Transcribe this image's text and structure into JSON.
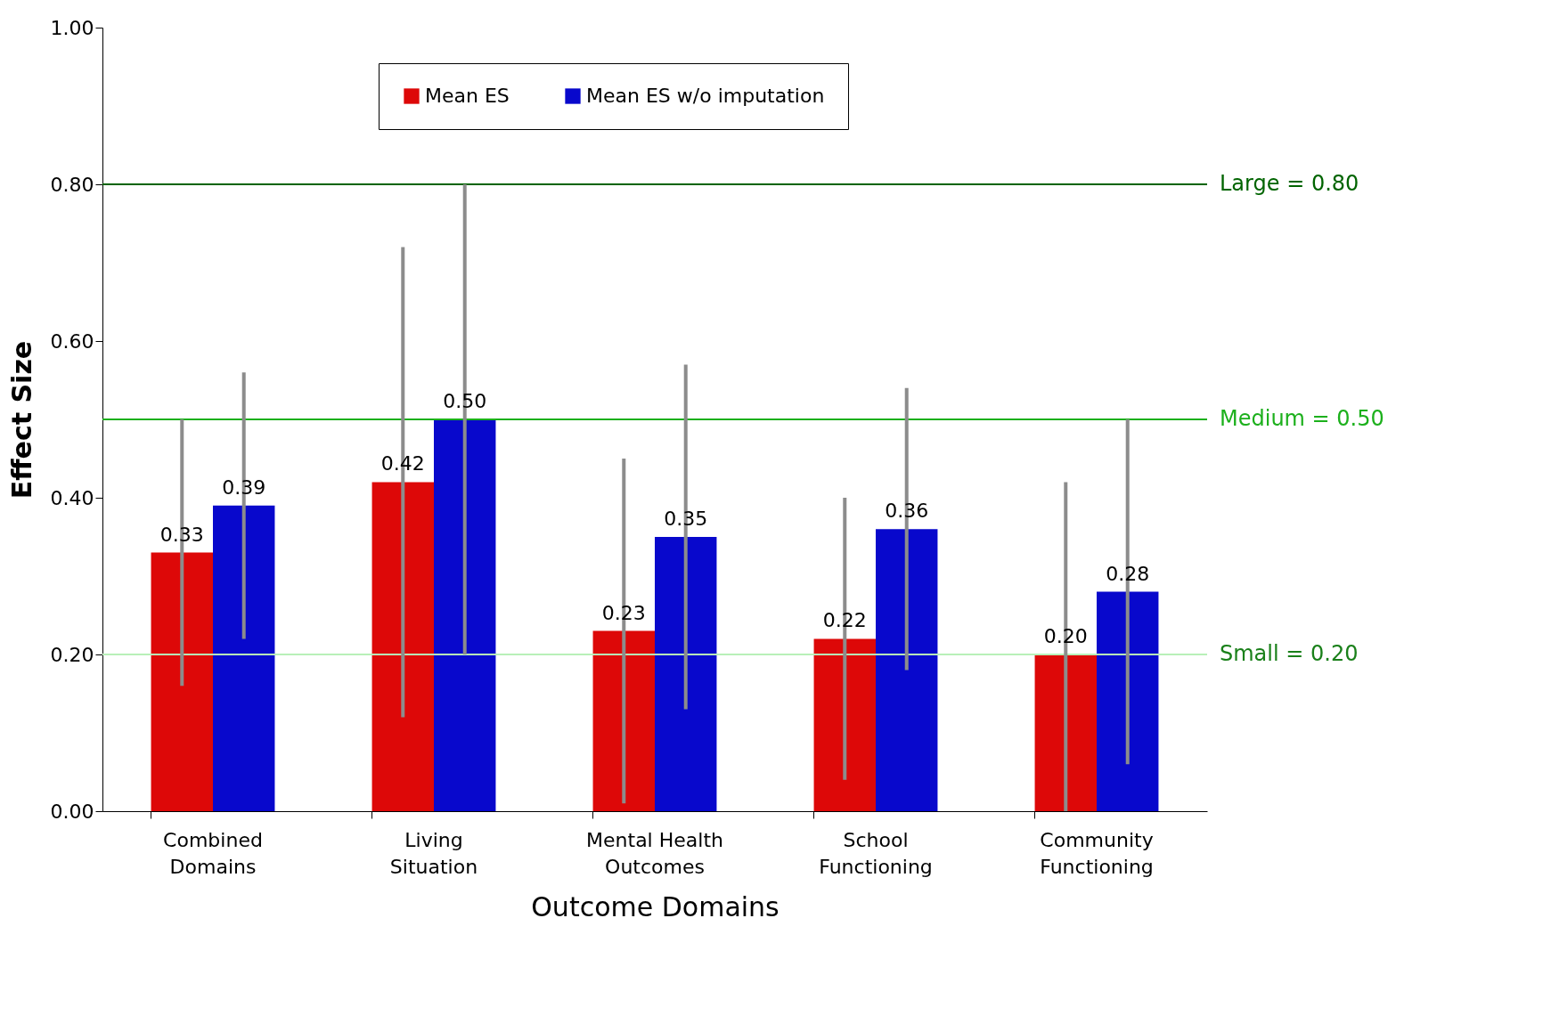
{
  "chart_data": {
    "type": "bar",
    "xlabel": "Outcome Domains",
    "ylabel": "Effect Size",
    "categories": [
      "Combined Domains",
      "Living Situation",
      "Mental Health Outcomes",
      "School Functioning",
      "Community Functioning"
    ],
    "series": [
      {
        "name": "Mean ES",
        "color": "#dd0808",
        "values": [
          0.33,
          0.42,
          0.23,
          0.22,
          0.2
        ],
        "value_labels": [
          "0.33",
          "0.42",
          "0.23",
          "0.22",
          "0.20"
        ],
        "errors": [
          [
            0.16,
            0.5
          ],
          [
            0.12,
            0.72
          ],
          [
            0.01,
            0.45
          ],
          [
            0.04,
            0.4
          ],
          [
            0.0,
            0.42
          ]
        ]
      },
      {
        "name": "Mean ES w/o imputation",
        "color": "#0808cc",
        "values": [
          0.39,
          0.5,
          0.35,
          0.36,
          0.28
        ],
        "value_labels": [
          "0.39",
          "0.50",
          "0.35",
          "0.36",
          "0.28"
        ],
        "errors": [
          [
            0.22,
            0.56
          ],
          [
            0.2,
            0.8
          ],
          [
            0.13,
            0.57
          ],
          [
            0.18,
            0.54
          ],
          [
            0.06,
            0.5
          ]
        ]
      }
    ],
    "ylim": [
      0,
      1
    ],
    "yticks": [
      {
        "value": 0,
        "label": "0.00"
      },
      {
        "value": 0.2,
        "label": "0.20"
      },
      {
        "value": 0.4,
        "label": "0.40"
      },
      {
        "value": 0.6,
        "label": "0.60"
      },
      {
        "value": 0.8,
        "label": "0.80"
      },
      {
        "value": 1,
        "label": "1.00"
      }
    ],
    "ref_lines": [
      {
        "axis": "y",
        "value": 0.8,
        "label": "Large = 0.80",
        "color": "#006400"
      },
      {
        "axis": "y",
        "value": 0.5,
        "label": "Medium = 0.50",
        "color": "#1cb01c"
      },
      {
        "axis": "y",
        "value": 0.2,
        "label": "Small = 0.20",
        "color": "#b8f0b8"
      }
    ],
    "legend": "top",
    "grid": false
  }
}
